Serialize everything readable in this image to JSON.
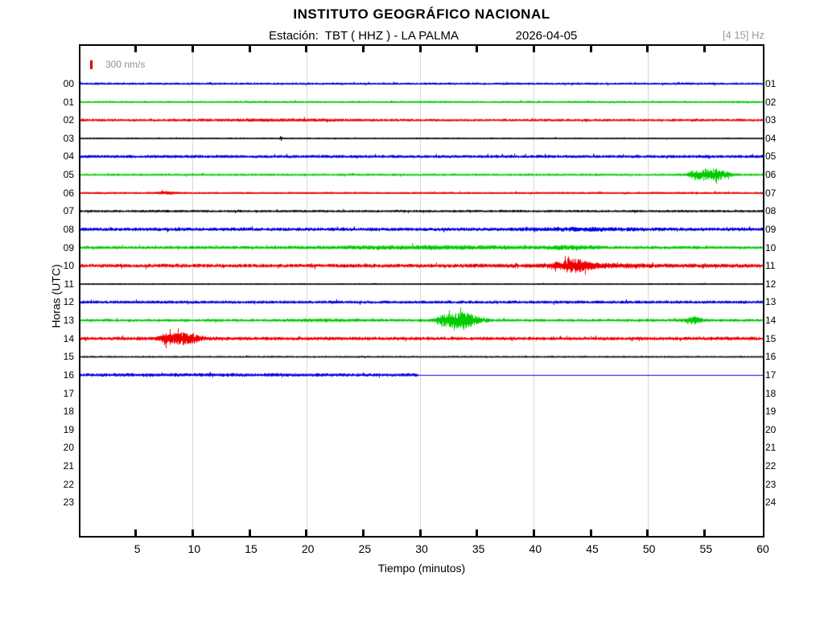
{
  "header": {
    "title": "INSTITUTO GEOGRÁFICO NACIONAL",
    "station_line": "Estación:  TBT ( HHZ ) - LA PALMA",
    "date": "2026-04-05",
    "filter_label": "[4 15] Hz"
  },
  "legend": {
    "scale_label": "300 nm/s",
    "scale_color": "#dd0000"
  },
  "axes": {
    "xlabel": "Tiempo (minutos)",
    "ylabel": "Horas (UTC)",
    "x_ticks": [
      5,
      10,
      15,
      20,
      25,
      30,
      35,
      40,
      45,
      50,
      55,
      60
    ],
    "tick_minutes": [
      5,
      10,
      15,
      20,
      25,
      30,
      35,
      40,
      45,
      50,
      55
    ],
    "grid_minutes": [
      10,
      20,
      30,
      40,
      50
    ],
    "hours_left": [
      "00",
      "01",
      "02",
      "03",
      "04",
      "05",
      "06",
      "07",
      "08",
      "09",
      "10",
      "11",
      "12",
      "13",
      "14",
      "15",
      "16",
      "17",
      "18",
      "19",
      "20",
      "21",
      "22",
      "23"
    ],
    "hours_right": [
      "01",
      "02",
      "03",
      "04",
      "05",
      "06",
      "07",
      "08",
      "09",
      "10",
      "11",
      "12",
      "13",
      "14",
      "15",
      "16",
      "17",
      "18",
      "19",
      "20",
      "21",
      "22",
      "23",
      "24"
    ]
  },
  "chart_data": {
    "type": "line",
    "subtype": "helicorder-seismogram",
    "title": "INSTITUTO GEOGRÁFICO NACIONAL",
    "xlabel": "Tiempo (minutos)",
    "ylabel": "Horas (UTC)",
    "x_range_minutes": [
      0,
      60
    ],
    "minutes_per_row": 60,
    "grid": "vertical-every-10-min",
    "colors": {
      "blue": "#0000dd",
      "green": "#00cc00",
      "red": "#ee0000",
      "black": "#000000"
    },
    "rows": [
      {
        "hour_utc": "00",
        "color": "#0000dd",
        "noise": 1.1,
        "data_end": 60,
        "events": []
      },
      {
        "hour_utc": "01",
        "color": "#00cc00",
        "noise": 0.95,
        "data_end": 60,
        "events": []
      },
      {
        "hour_utc": "02",
        "color": "#ee0000",
        "noise": 1.25,
        "data_end": 60,
        "events": [
          {
            "peak": 17,
            "sigma": 5,
            "amp": 0.7
          }
        ]
      },
      {
        "hour_utc": "03",
        "color": "#000000",
        "noise": 0.7,
        "data_end": 60,
        "events": [
          {
            "peak": 17.6,
            "sigma": 0.08,
            "amp": 3
          }
        ]
      },
      {
        "hour_utc": "04",
        "color": "#0000dd",
        "noise": 1.5,
        "data_end": 60,
        "events": []
      },
      {
        "hour_utc": "05",
        "color": "#00cc00",
        "noise": 1.1,
        "data_end": 60,
        "events": [
          {
            "peak": 55.4,
            "sigma": 1.0,
            "amp": 7.5
          },
          {
            "peak": 53.9,
            "sigma": 0.35,
            "amp": 2.5
          }
        ]
      },
      {
        "hour_utc": "06",
        "color": "#ee0000",
        "noise": 1.0,
        "data_end": 60,
        "events": [
          {
            "peak": 7.6,
            "sigma": 0.7,
            "amp": 1.3
          }
        ]
      },
      {
        "hour_utc": "07",
        "color": "#000000",
        "noise": 1.15,
        "data_end": 60,
        "events": []
      },
      {
        "hour_utc": "08",
        "color": "#0000dd",
        "noise": 1.7,
        "data_end": 60,
        "events": [
          {
            "peak": 44.5,
            "sigma": 3.5,
            "amp": 1.1
          }
        ]
      },
      {
        "hour_utc": "09",
        "color": "#00cc00",
        "noise": 1.5,
        "data_end": 60,
        "events": [
          {
            "peak": 31,
            "sigma": 7,
            "amp": 1.4
          },
          {
            "peak": 43,
            "sigma": 1.5,
            "amp": 1.6
          }
        ]
      },
      {
        "hour_utc": "10",
        "color": "#ee0000",
        "noise": 1.9,
        "data_end": 60,
        "events": [
          {
            "peak": 43.3,
            "sigma": 1.1,
            "amp": 6.5
          },
          {
            "peak": 45.5,
            "sigma": 4,
            "amp": 1.3
          }
        ]
      },
      {
        "hour_utc": "11",
        "color": "#000000",
        "noise": 0.65,
        "data_end": 60,
        "events": []
      },
      {
        "hour_utc": "12",
        "color": "#0000dd",
        "noise": 1.5,
        "data_end": 60,
        "events": []
      },
      {
        "hour_utc": "13",
        "color": "#00cc00",
        "noise": 1.4,
        "data_end": 60,
        "events": [
          {
            "peak": 33.6,
            "sigma": 1.0,
            "amp": 9.5
          },
          {
            "peak": 31.9,
            "sigma": 0.6,
            "amp": 4
          },
          {
            "peak": 53.8,
            "sigma": 0.55,
            "amp": 4.5
          },
          {
            "peak": 21.5,
            "sigma": 2.5,
            "amp": 0.8
          }
        ]
      },
      {
        "hour_utc": "14",
        "color": "#ee0000",
        "noise": 1.7,
        "data_end": 60,
        "events": [
          {
            "peak": 9.0,
            "sigma": 1.0,
            "amp": 7.5
          },
          {
            "peak": 7.4,
            "sigma": 0.5,
            "amp": 3
          }
        ]
      },
      {
        "hour_utc": "15",
        "color": "#000000",
        "noise": 0.8,
        "data_end": 60,
        "events": []
      },
      {
        "hour_utc": "16",
        "color": "#0000dd",
        "noise": 1.7,
        "data_end": 29.7,
        "events": [],
        "flat_line_to": 60
      }
    ],
    "empty_rows_hours": [
      "17",
      "18",
      "19",
      "20",
      "21",
      "22",
      "23"
    ]
  }
}
